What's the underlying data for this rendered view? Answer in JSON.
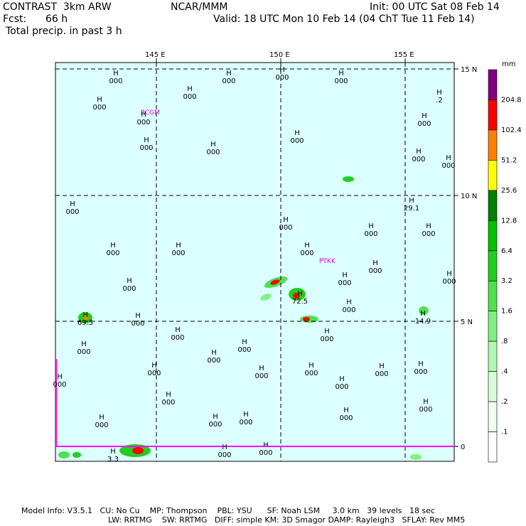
{
  "header": {
    "model": "CONTRAST  3km ARW",
    "org": "NCAR/MMM",
    "init": "Init: 00 UTC Sat 08 Feb 14",
    "fcst_label": "Fcst:",
    "fcst_value": "66 h",
    "valid": "Valid: 18 UTC Mon 10 Feb 14 (04 ChT Tue 11 Feb 14)",
    "field": "Total precip. in past 3 h"
  },
  "axes": {
    "lon_labels": [
      "145 E",
      "150 E",
      "155 E"
    ],
    "lat_labels": [
      "15 N",
      "10 N",
      "5 N",
      "0"
    ]
  },
  "stations": [
    "RCGM",
    "PTKK"
  ],
  "colorbar": {
    "unit": "mm",
    "levels": [
      "204.8",
      "102.4",
      "51.2",
      "25.6",
      "12.8",
      "6.4",
      "3.2",
      "1.6",
      ".8",
      ".4",
      ".2",
      ".1"
    ],
    "colors": [
      "#800080",
      "#ff0000",
      "#ff8000",
      "#ffff00",
      "#008000",
      "#00c000",
      "#20d020",
      "#50e050",
      "#80f080",
      "#b0f8b0",
      "#d8fcd8",
      "#f0fff0"
    ]
  },
  "highs": [
    {
      "h": "H",
      "v": "000"
    },
    {
      "h": "H",
      "v": "000"
    },
    {
      "h": "H",
      "v": "000"
    },
    {
      "h": "H",
      "v": "000"
    },
    {
      "h": "H",
      "v": "000"
    },
    {
      "h": "H",
      "v": "000"
    },
    {
      "h": "H",
      "v": "000"
    },
    {
      "h": "H",
      "v": "000"
    },
    {
      "h": "H",
      "v": ".2"
    },
    {
      "h": "H",
      "v": "000"
    },
    {
      "h": "H",
      "v": "000"
    },
    {
      "h": "H",
      "v": "000"
    },
    {
      "h": "H",
      "v": "000"
    },
    {
      "h": "H",
      "v": "000"
    },
    {
      "h": "H",
      "v": "000"
    },
    {
      "h": "H",
      "v": "29.1"
    },
    {
      "h": "H",
      "v": "000"
    },
    {
      "h": "H",
      "v": "000"
    },
    {
      "h": "H",
      "v": "000"
    },
    {
      "h": "H",
      "v": "000"
    },
    {
      "h": "H",
      "v": "000"
    },
    {
      "h": "H",
      "v": "000"
    },
    {
      "h": "H",
      "v": "000"
    },
    {
      "h": "H",
      "v": "000"
    },
    {
      "h": "H",
      "v": "000"
    },
    {
      "h": "H",
      "v": "000"
    },
    {
      "h": "H",
      "v": "72.5"
    },
    {
      "h": "H",
      "v": "000"
    },
    {
      "h": "H",
      "v": "69.5"
    },
    {
      "h": "H",
      "v": "000"
    },
    {
      "h": "H",
      "v": "14.9"
    },
    {
      "h": "H",
      "v": "000"
    },
    {
      "h": "H",
      "v": "000"
    },
    {
      "h": "H",
      "v": "000"
    },
    {
      "h": "H",
      "v": "000"
    },
    {
      "h": "H",
      "v": "000"
    },
    {
      "h": "H",
      "v": "000"
    },
    {
      "h": "H",
      "v": "000"
    },
    {
      "h": "H",
      "v": "000"
    },
    {
      "h": "H",
      "v": "000"
    },
    {
      "h": "H",
      "v": "000"
    },
    {
      "h": "H",
      "v": "000"
    },
    {
      "h": "H",
      "v": "000"
    },
    {
      "h": "H",
      "v": "000"
    },
    {
      "h": "H",
      "v": "000"
    },
    {
      "h": "H",
      "v": "000"
    },
    {
      "h": "H",
      "v": "000"
    },
    {
      "h": "H",
      "v": "3.3"
    },
    {
      "h": "H",
      "v": "000"
    },
    {
      "h": "H",
      "v": "000"
    },
    {
      "h": "H",
      "v": "000"
    },
    {
      "h": "H",
      "v": "000"
    }
  ],
  "footer": {
    "line1": "Model Info: V3.5.1   CU: No Cu    MP: Thompson    PBL: YSU      SF: Noah LSM     3.0 km   39 levels   18 sec",
    "line2": "LW: RRTMG    SW: RRTMG   DIFF: simple KM: 3D Smagor DAMP: Rayleigh3   SFLAY: Rev MM5"
  }
}
